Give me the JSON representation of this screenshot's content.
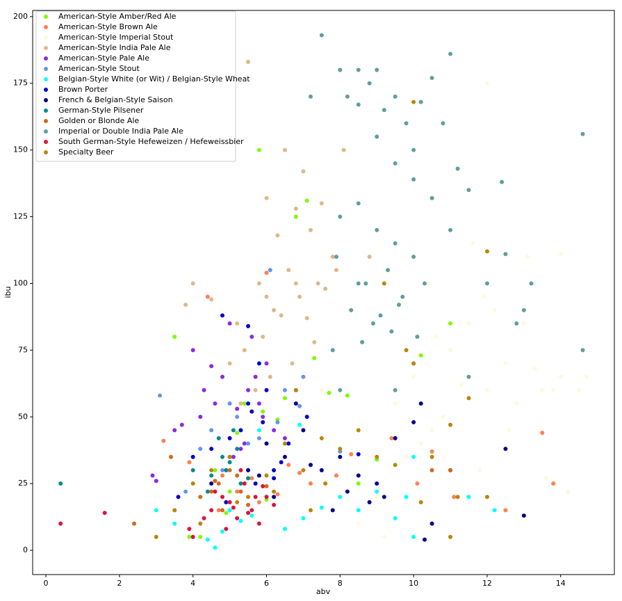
{
  "chart_data": {
    "type": "scatter",
    "x_label": "abv",
    "y_label": "ibu",
    "xlim": [
      -0.36,
      15.46
    ],
    "ylim": [
      -9.1,
      202.3
    ],
    "xticks": [
      0,
      2,
      4,
      6,
      8,
      10,
      12,
      14
    ],
    "yticks": [
      0,
      25,
      50,
      75,
      100,
      125,
      150,
      175,
      200
    ],
    "legend": "upper left",
    "series": [
      {
        "name": "American-Style Amber/Red Ale",
        "color": "#7cfc00",
        "x": [
          3.5,
          5.8,
          7.1,
          6.8,
          11,
          5.2,
          4.6,
          6.5,
          8.2,
          5.0,
          7.3,
          5.5,
          9.0,
          4.2,
          6.0,
          10.2,
          5.9,
          4.9,
          6.3,
          7.7,
          3.9,
          5.4,
          8.5
        ],
        "y": [
          80,
          150,
          131,
          125,
          85,
          44,
          30,
          57,
          58,
          22,
          72,
          27,
          34,
          5,
          19,
          73,
          52,
          14,
          49,
          59,
          5,
          55,
          25
        ]
      },
      {
        "name": "American-Style Brown Ale",
        "color": "#ff7f50",
        "x": [
          3.2,
          5.5,
          6.0,
          4.4,
          5.0,
          4.5,
          6.3,
          8.3,
          9.4,
          10.5,
          12.5,
          13.8,
          13.5,
          5.2,
          4.8,
          5.8,
          7.2,
          6.6,
          3.9,
          7.9,
          10.1,
          11.1,
          4.7,
          5.6,
          6.9
        ],
        "y": [
          41,
          30,
          104,
          95,
          35,
          25,
          21,
          36,
          42,
          37,
          15,
          25,
          44,
          22,
          28,
          18,
          25,
          32,
          33,
          28,
          25,
          20,
          15,
          27,
          29
        ]
      },
      {
        "name": "American-Style Imperial Stout",
        "color": "#fff8dc",
        "x": [
          9.5,
          10.0,
          10.5,
          11.0,
          11.5,
          12.0,
          12.5,
          13.0,
          13.5,
          14.0,
          14.5,
          10.2,
          10.8,
          11.3,
          12.2,
          12.8,
          13.3,
          13.8,
          14.2,
          9.8,
          10.6,
          11.6,
          12.6,
          13.6,
          14.7,
          9.0,
          11.8,
          12.0,
          9.2,
          10.4,
          8.5,
          7.5,
          13.1,
          14.0,
          11.9
        ],
        "y": [
          55,
          65,
          45,
          75,
          85,
          60,
          70,
          85,
          60,
          65,
          60,
          40,
          50,
          62,
          90,
          55,
          68,
          60,
          22,
          35,
          80,
          115,
          45,
          27,
          65,
          20,
          30,
          175,
          5,
          100,
          10,
          60,
          110,
          111,
          95
        ]
      },
      {
        "name": "American-Style India Pale Ale",
        "color": "#deb887",
        "x": [
          5.5,
          6.5,
          7.0,
          6.0,
          5.8,
          6.8,
          7.2,
          6.3,
          7.5,
          8.0,
          5.2,
          4.5,
          6.9,
          7.8,
          6.6,
          5.9,
          7.1,
          6.2,
          5.4,
          6.7,
          7.4,
          4.0,
          3.8,
          6.1,
          5.7,
          7.9,
          8.1,
          6.4,
          7.3,
          5.0,
          6.0,
          6.8,
          7.6,
          8.8,
          5.3
        ],
        "y": [
          183,
          150,
          142,
          132,
          100,
          100,
          120,
          118,
          130,
          180,
          85,
          94,
          95,
          110,
          105,
          80,
          87,
          90,
          75,
          70,
          100,
          100,
          92,
          65,
          60,
          105,
          150,
          88,
          78,
          70,
          95,
          128,
          98,
          110,
          55
        ]
      },
      {
        "name": "American-Style Pale Ale",
        "color": "#8a2be2",
        "x": [
          2.9,
          3.0,
          4.0,
          4.5,
          5.0,
          5.5,
          5.2,
          5.8,
          6.0,
          4.8,
          4.2,
          3.7,
          5.4,
          6.2,
          5.6,
          4.6,
          5.1,
          6.5,
          5.9,
          4.9,
          3.5,
          5.3,
          6.8,
          4.3,
          5.7
        ],
        "y": [
          28,
          26,
          75,
          69,
          85,
          60,
          53,
          55,
          70,
          65,
          50,
          47,
          40,
          45,
          80,
          55,
          35,
          42,
          50,
          30,
          45,
          38,
          60,
          60,
          65
        ]
      },
      {
        "name": "American-Style Stout",
        "color": "#6495ed",
        "x": [
          3.1,
          4.5,
          5.0,
          6.1,
          7.0,
          5.5,
          5.8,
          6.5,
          4.2,
          4.8,
          6.9,
          8.0,
          3.8,
          5.2,
          6.3
        ],
        "y": [
          58,
          45,
          55,
          105,
          65,
          40,
          42,
          60,
          38,
          30,
          54,
          37,
          22,
          50,
          48
        ]
      },
      {
        "name": "Belgian-Style White (or Wit) / Belgian-Style Wheat",
        "color": "#00ffff",
        "x": [
          3.0,
          3.5,
          4.0,
          4.4,
          4.8,
          5.0,
          5.3,
          5.6,
          6.0,
          6.5,
          7.0,
          7.5,
          8.0,
          8.5,
          9.0,
          9.5,
          10.0,
          10.0,
          11.5,
          12.2,
          9.8,
          4.6,
          5.8,
          6.9
        ],
        "y": [
          15,
          10,
          5,
          4,
          7,
          15,
          11,
          13,
          20,
          8,
          12,
          16,
          20,
          15,
          22,
          12,
          35,
          5,
          20,
          15,
          20,
          1,
          45,
          47
        ]
      },
      {
        "name": "Brown Porter",
        "color": "#0000cd",
        "x": [
          4.0,
          4.8,
          5.5,
          5.8,
          6.2,
          5.0,
          5.3,
          6.0,
          6.4,
          5.6,
          4.5,
          5.9,
          6.6,
          7.1,
          4.9,
          5.7,
          8.5,
          3.6,
          6.2,
          5.5
        ],
        "y": [
          35,
          88,
          84,
          70,
          30,
          42,
          45,
          60,
          33,
          52,
          38,
          48,
          40,
          50,
          18,
          25,
          36,
          20,
          27,
          55
        ]
      },
      {
        "name": "French & Belgian-Style Saison",
        "color": "#00008b",
        "x": [
          4.5,
          5.5,
          6.0,
          6.5,
          7.0,
          7.5,
          8.0,
          8.5,
          9.0,
          9.5,
          10.0,
          10.5,
          11.0,
          12.5,
          13.0,
          6.2,
          7.2,
          8.2,
          9.2,
          5.8,
          7.8,
          10.2,
          6.8,
          8.8,
          10.3
        ],
        "y": [
          25,
          30,
          40,
          35,
          45,
          30,
          35,
          28,
          25,
          42,
          48,
          10,
          30,
          38,
          13,
          20,
          32,
          22,
          20,
          28,
          15,
          55,
          55,
          18,
          4
        ]
      },
      {
        "name": "German-Style Pilsener",
        "color": "#008b8b",
        "x": [
          0.4,
          4.0,
          4.5,
          4.8,
          5.0,
          5.2,
          5.5,
          4.7,
          5.3,
          4.9,
          5.1,
          4.4
        ],
        "y": [
          25,
          30,
          28,
          35,
          33,
          38,
          27,
          42,
          25,
          30,
          45,
          22
        ]
      },
      {
        "name": "Golden or Blonde Ale",
        "color": "#d2691e",
        "x": [
          2.4,
          3.4,
          4.2,
          4.5,
          4.7,
          5.0,
          5.2,
          5.5,
          5.0,
          6.0,
          4.8,
          5.3,
          10.5,
          11.0,
          9.0,
          4.6
        ],
        "y": [
          10,
          35,
          20,
          22,
          25,
          18,
          28,
          17,
          30,
          24,
          15,
          22,
          30,
          30,
          35,
          26
        ]
      },
      {
        "name": "Imperial or Double India Pale Ale",
        "color": "#5f9ea0",
        "x": [
          7.5,
          8.0,
          8.5,
          8.8,
          9.0,
          9.2,
          9.5,
          9.8,
          10.0,
          10.2,
          10.5,
          10.8,
          11.0,
          11.2,
          11.5,
          12.0,
          12.4,
          12.5,
          13.0,
          14.6,
          14.6,
          8.2,
          8.5,
          9.0,
          9.5,
          10.0,
          10.5,
          11.0,
          8.0,
          8.5,
          9.0,
          9.5,
          10.0,
          8.7,
          9.3,
          9.7,
          10.3,
          8.3,
          8.9,
          9.1,
          9.6,
          10.1,
          7.8,
          8.6,
          9.4,
          11.5,
          12.8,
          13.2,
          10.0,
          9.5,
          8.0,
          7.2,
          8.5,
          7.9
        ],
        "y": [
          193,
          180,
          180,
          175,
          180,
          165,
          170,
          160,
          150,
          168,
          177,
          160,
          186,
          143,
          135,
          100,
          138,
          111,
          90,
          156,
          75,
          170,
          167,
          155,
          145,
          139,
          132,
          120,
          125,
          130,
          120,
          115,
          110,
          100,
          105,
          95,
          100,
          90,
          85,
          88,
          92,
          80,
          75,
          78,
          82,
          65,
          85,
          100,
          70,
          60,
          60,
          170,
          100,
          110
        ]
      },
      {
        "name": "South German-Style Hefeweizen / Hefeweissbier",
        "color": "#dc143c",
        "x": [
          0.4,
          1.6,
          4.0,
          4.5,
          4.8,
          5.0,
          5.2,
          5.4,
          5.6,
          5.8,
          6.0,
          4.6,
          4.9,
          5.1,
          5.3,
          5.5,
          5.7,
          4.3,
          6.2,
          3.9,
          5.9
        ],
        "y": [
          10,
          14,
          5,
          15,
          20,
          18,
          12,
          25,
          15,
          10,
          20,
          22,
          8,
          16,
          30,
          14,
          20,
          12,
          17,
          8,
          24
        ]
      },
      {
        "name": "Specialty Beer",
        "color": "#b8860b",
        "x": [
          3.0,
          3.5,
          4.0,
          4.5,
          5.0,
          5.5,
          6.0,
          6.5,
          7.0,
          7.5,
          8.0,
          8.5,
          9.0,
          9.5,
          10.0,
          10.5,
          11.0,
          11.5,
          12.0,
          6.8,
          7.6,
          9.2,
          10.2,
          11.2,
          4.2,
          5.2,
          6.2,
          7.2,
          10.0,
          9.8,
          12.0,
          11.0
        ],
        "y": [
          5,
          15,
          25,
          30,
          35,
          20,
          28,
          40,
          30,
          42,
          38,
          45,
          35,
          32,
          168,
          35,
          47,
          57,
          112,
          60,
          25,
          100,
          18,
          20,
          10,
          18,
          22,
          15,
          70,
          75,
          20,
          5
        ]
      }
    ]
  }
}
